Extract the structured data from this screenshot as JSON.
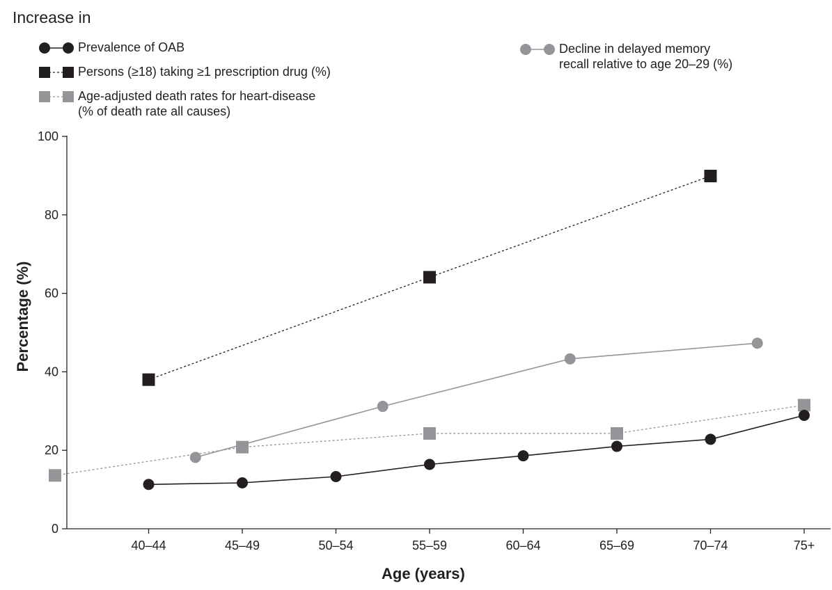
{
  "chart_data": {
    "type": "line",
    "header": "Increase in",
    "xlabel": "Age (years)",
    "ylabel": "Percentage (%)",
    "ylim": [
      0,
      100
    ],
    "yticks": [
      "0",
      "20",
      "40",
      "60",
      "80",
      "100"
    ],
    "categories": [
      "40–44",
      "45–49",
      "50–54",
      "55–59",
      "60–64",
      "65–69",
      "70–74",
      "75+"
    ],
    "grid": false,
    "legend_placement": "top",
    "series": [
      {
        "name": "Prevalence of OAB",
        "marker": "circle",
        "line": "solid",
        "color": "#231f20",
        "points": [
          {
            "x": "40–44",
            "y": 11.3
          },
          {
            "x": "45–49",
            "y": 11.7
          },
          {
            "x": "50–54",
            "y": 13.3
          },
          {
            "x": "55–59",
            "y": 16.4
          },
          {
            "x": "60–64",
            "y": 18.6
          },
          {
            "x": "65–69",
            "y": 21.0
          },
          {
            "x": "70–74",
            "y": 22.8
          },
          {
            "x": "75+",
            "y": 28.9
          }
        ]
      },
      {
        "name": "Persons (≥18) taking ≥1 prescription drug (%)",
        "marker": "square",
        "line": "dashed",
        "color": "#231f20",
        "points": [
          {
            "x": "40–44",
            "y": 38.0
          },
          {
            "x": "55–59",
            "y": 64.1
          },
          {
            "x": "70–74",
            "y": 89.9
          }
        ]
      },
      {
        "name": "Age-adjusted death rates for heart-disease (% of death rate all causes)",
        "name_line1": "Age-adjusted death rates for heart-disease",
        "name_line2": "(% of death rate all causes)",
        "marker": "square",
        "line": "dashed",
        "color": "#939598",
        "points": [
          {
            "x": "35–39",
            "y": 13.6
          },
          {
            "x": "45–49",
            "y": 20.8
          },
          {
            "x": "55–59",
            "y": 24.3
          },
          {
            "x": "65–69",
            "y": 24.3
          },
          {
            "x": "75+",
            "y": 31.5
          }
        ]
      },
      {
        "name": "Decline in delayed memory recall relative to age 20–29 (%)",
        "name_line1": "Decline in delayed memory",
        "name_line2": "recall relative to age 20–29 (%)",
        "marker": "circle",
        "line": "solid",
        "color": "#939598",
        "points": [
          {
            "x": "40–49",
            "y": 18.2
          },
          {
            "x": "50–59",
            "y": 31.2
          },
          {
            "x": "60–69",
            "y": 43.3
          },
          {
            "x": "70–79",
            "y": 47.3
          }
        ]
      }
    ]
  }
}
